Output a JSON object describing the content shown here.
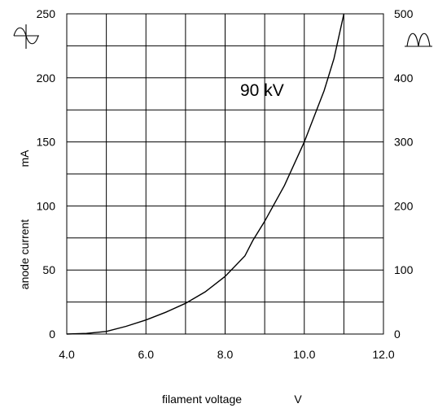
{
  "chart_data": {
    "type": "line",
    "xlabel": "filament voltage",
    "xunit": "V",
    "ylabel": "anode current",
    "yunit": "mA",
    "xlim": [
      4.0,
      12.0
    ],
    "ylim": [
      0,
      250
    ],
    "y2lim": [
      0,
      500
    ],
    "grid": true,
    "x_ticks": [
      "4.0",
      "6.0",
      "8.0",
      "10.0",
      "12.0"
    ],
    "y_ticks": [
      "0",
      "50",
      "100",
      "150",
      "200",
      "250"
    ],
    "y2_ticks": [
      "0",
      "100",
      "200",
      "300",
      "400",
      "500"
    ],
    "annotation": "90  kV",
    "left_axis_symbol": "sine-wave-icon",
    "right_axis_symbol": "rectified-wave-icon",
    "series": [
      {
        "x": [
          4.0,
          4.5,
          5.0,
          5.5,
          6.0,
          6.5,
          7.0,
          7.5,
          8.0,
          8.5,
          8.7,
          9.0,
          9.5,
          10.0,
          10.5,
          10.75,
          11.0
        ],
        "y": [
          0,
          0.5,
          2,
          6,
          11,
          17,
          24,
          33,
          45,
          61,
          73,
          88,
          116,
          150,
          190,
          215,
          250
        ]
      }
    ]
  }
}
